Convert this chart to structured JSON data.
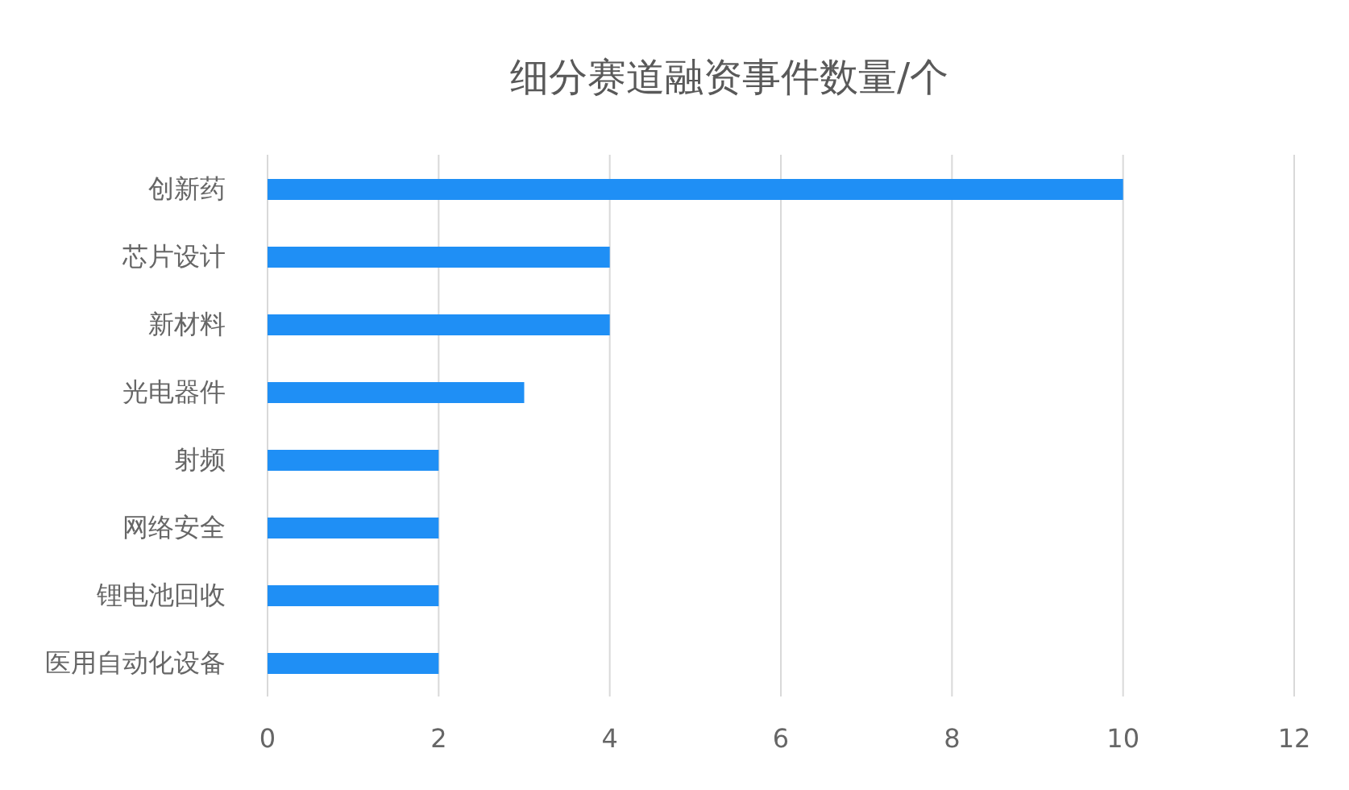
{
  "chart_data": {
    "type": "bar",
    "orientation": "horizontal",
    "title": "细分赛道融资事件数量/个",
    "categories": [
      "创新药",
      "芯片设计",
      "新材料",
      "光电器件",
      "射频",
      "网络安全",
      "锂电池回收",
      "医用自动化设备"
    ],
    "values": [
      10,
      4,
      4,
      3,
      2,
      2,
      2,
      2
    ],
    "color": "#1f8ff5",
    "xlim": [
      0,
      12
    ],
    "xticks": [
      0,
      2,
      4,
      6,
      8,
      10,
      12
    ],
    "grid": "x",
    "legend": false
  }
}
